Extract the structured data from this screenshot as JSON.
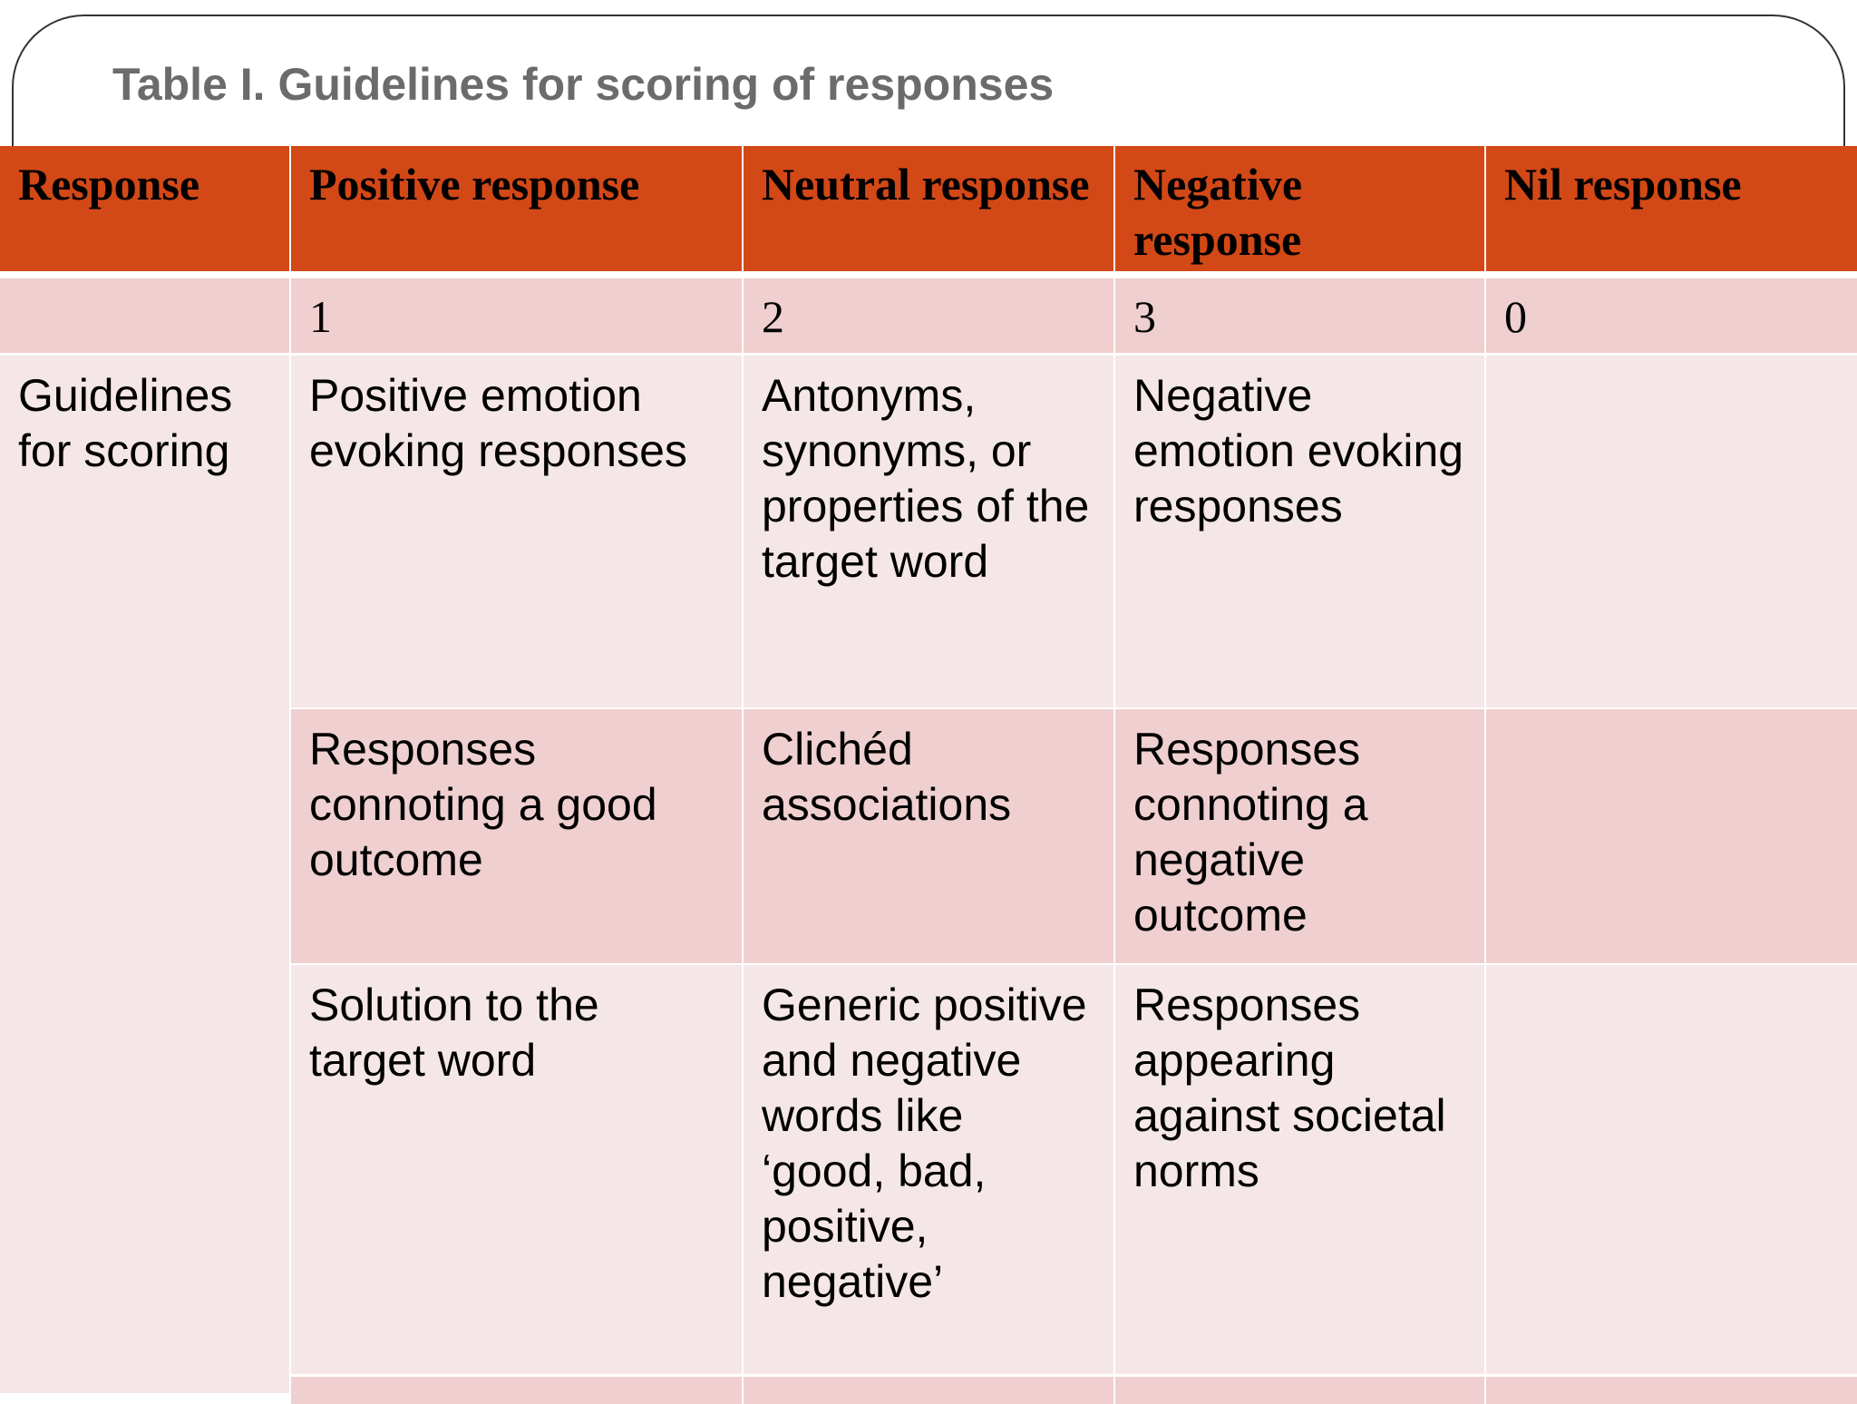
{
  "title": "Table I. Guidelines for scoring of responses",
  "colors": {
    "header": "#d34817",
    "row_dark": "#efcfcf",
    "row_light": "#f5e7e7"
  },
  "headers": [
    "Response",
    "Positive response",
    "Neutral response",
    "Negative response",
    "Nil response"
  ],
  "scores": [
    "",
    "1",
    "2",
    "3",
    "0"
  ],
  "row_label": "Guidelines for scoring",
  "rows": [
    [
      "Positive emotion evoking responses",
      "Antonyms, synonyms, or properties of the target word",
      "Negative emotion evoking responses",
      ""
    ],
    [
      "Responses connoting a good outcome",
      "Clichéd associations",
      "Responses connoting a negative outcome",
      ""
    ],
    [
      "Solution to the target word",
      "Generic positive and negative words like ‘good, bad, positive, negative’",
      "Responses appearing against societal norms",
      ""
    ]
  ]
}
